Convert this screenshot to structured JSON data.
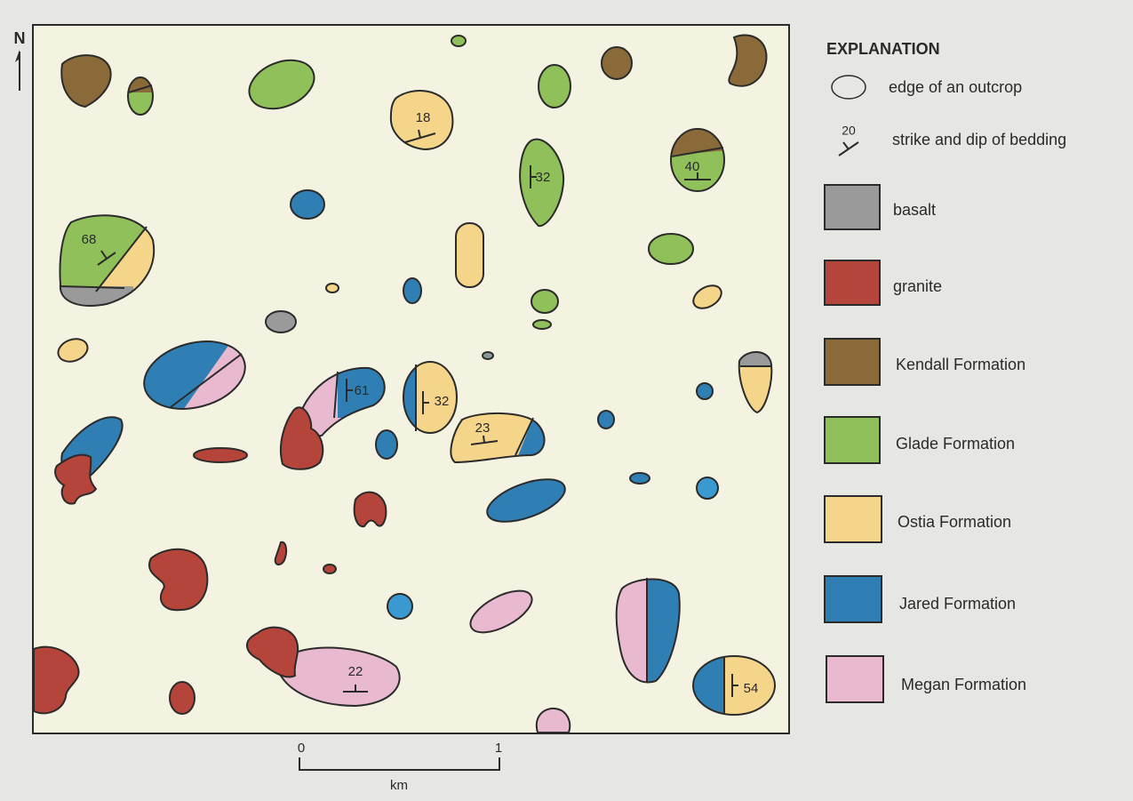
{
  "north": "N",
  "map": {
    "strike_dip_labels": [
      18,
      32,
      40,
      68,
      61,
      32,
      23,
      22,
      54
    ]
  },
  "scale_bar": {
    "start": 0,
    "end": 1,
    "unit": "km"
  },
  "explanation": {
    "title": "EXPLANATION",
    "symbols": [
      {
        "label": "edge of an outcrop"
      },
      {
        "value": 20,
        "label": "strike and dip of bedding"
      }
    ],
    "units": [
      "basalt",
      "granite",
      "Kendall Formation",
      "Glade Formation",
      "Ostia Formation",
      "Jared Formation",
      "Megan Formation"
    ]
  }
}
